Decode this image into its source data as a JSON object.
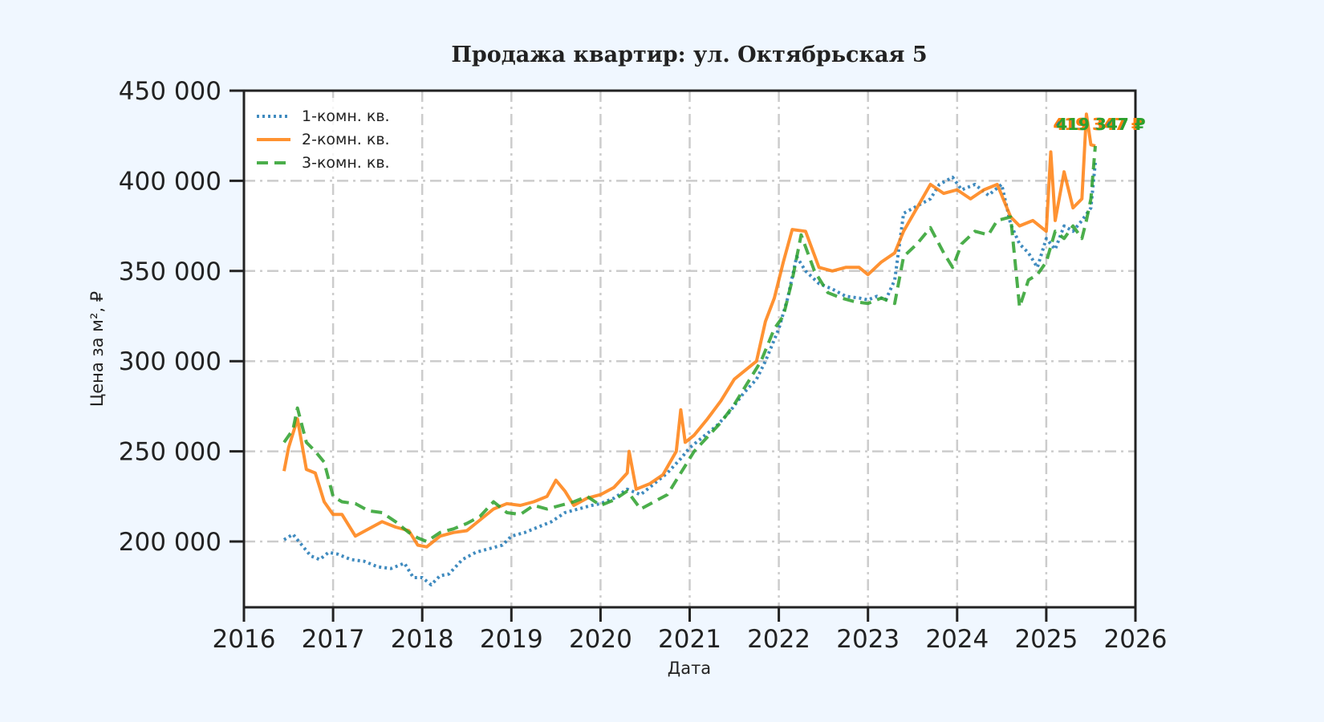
{
  "chart_data": {
    "type": "line",
    "title": "Продажа квартир: ул. Октябрьская 5",
    "xlabel": "Дата",
    "ylabel": "Цена за м², ₽",
    "xlim": [
      2016,
      2026
    ],
    "ylim": [
      163000,
      450000
    ],
    "x_ticks": [
      "2016",
      "2017",
      "2018",
      "2019",
      "2020",
      "2021",
      "2022",
      "2023",
      "2024",
      "2025",
      "2026"
    ],
    "y_ticks": [
      {
        "value": 200000,
        "label": "200 000"
      },
      {
        "value": 250000,
        "label": "250 000"
      },
      {
        "value": 300000,
        "label": "300 000"
      },
      {
        "value": 350000,
        "label": "350 000"
      },
      {
        "value": 400000,
        "label": "400 000"
      },
      {
        "value": 450000,
        "label": "450 000"
      }
    ],
    "grid": true,
    "legend_position": "upper left",
    "annotation": {
      "text": "419 347 ₽",
      "x": 2025.5,
      "y": 419347
    },
    "series": [
      {
        "name": "1-комн. кв.",
        "color": "#1f77b4",
        "style": "dotted",
        "x": [
          2016.45,
          2016.55,
          2016.65,
          2016.75,
          2016.85,
          2016.95,
          2017.05,
          2017.2,
          2017.35,
          2017.5,
          2017.65,
          2017.8,
          2017.9,
          2018.0,
          2018.1,
          2018.2,
          2018.3,
          2018.45,
          2018.6,
          2018.75,
          2018.9,
          2019.0,
          2019.15,
          2019.3,
          2019.45,
          2019.6,
          2019.75,
          2019.9,
          2020.0,
          2020.15,
          2020.3,
          2020.45,
          2020.6,
          2020.75,
          2020.9,
          2021.0,
          2021.15,
          2021.3,
          2021.45,
          2021.6,
          2021.75,
          2021.85,
          2022.0,
          2022.1,
          2022.2,
          2022.3,
          2022.45,
          2022.6,
          2022.75,
          2022.9,
          2023.0,
          2023.1,
          2023.2,
          2023.3,
          2023.4,
          2023.55,
          2023.7,
          2023.8,
          2023.95,
          2024.05,
          2024.2,
          2024.35,
          2024.5,
          2024.6,
          2024.7,
          2024.8,
          2024.9,
          2025.0,
          2025.1,
          2025.2,
          2025.3,
          2025.4,
          2025.5,
          2025.55
        ],
        "values": [
          201000,
          204000,
          198000,
          192000,
          190000,
          194000,
          193000,
          190000,
          189000,
          186000,
          185000,
          188000,
          180000,
          180000,
          176000,
          181000,
          182000,
          190000,
          194000,
          196000,
          198000,
          203000,
          205000,
          208000,
          211000,
          216000,
          218000,
          220000,
          221000,
          224000,
          229000,
          226000,
          232000,
          238000,
          246000,
          252000,
          258000,
          264000,
          272000,
          282000,
          290000,
          300000,
          318000,
          335000,
          358000,
          350000,
          343000,
          340000,
          336000,
          335000,
          334000,
          336000,
          334000,
          345000,
          382000,
          386000,
          390000,
          398000,
          402000,
          395000,
          398000,
          392000,
          398000,
          376000,
          365000,
          360000,
          352000,
          368000,
          362000,
          375000,
          372000,
          378000,
          385000,
          410000
        ]
      },
      {
        "name": "2-комн. кв.",
        "color": "#ff7f0e",
        "style": "solid",
        "x": [
          2016.45,
          2016.5,
          2016.6,
          2016.7,
          2016.8,
          2016.9,
          2017.0,
          2017.1,
          2017.25,
          2017.4,
          2017.55,
          2017.7,
          2017.85,
          2017.95,
          2018.05,
          2018.2,
          2018.35,
          2018.5,
          2018.65,
          2018.8,
          2018.95,
          2019.1,
          2019.25,
          2019.4,
          2019.5,
          2019.6,
          2019.7,
          2019.85,
          2020.0,
          2020.15,
          2020.3,
          2020.32,
          2020.4,
          2020.55,
          2020.7,
          2020.85,
          2020.9,
          2020.95,
          2021.05,
          2021.2,
          2021.35,
          2021.5,
          2021.65,
          2021.75,
          2021.85,
          2021.95,
          2022.05,
          2022.15,
          2022.3,
          2022.45,
          2022.6,
          2022.75,
          2022.9,
          2023.0,
          2023.15,
          2023.3,
          2023.4,
          2023.55,
          2023.7,
          2023.85,
          2024.0,
          2024.15,
          2024.3,
          2024.45,
          2024.6,
          2024.7,
          2024.85,
          2025.0,
          2025.05,
          2025.1,
          2025.2,
          2025.3,
          2025.4,
          2025.45,
          2025.5,
          2025.55
        ],
        "values": [
          239000,
          252000,
          268000,
          240000,
          238000,
          222000,
          215000,
          215000,
          203000,
          207000,
          211000,
          208000,
          206000,
          198000,
          197000,
          203000,
          205000,
          206000,
          212000,
          218000,
          221000,
          220000,
          222000,
          225000,
          234000,
          228000,
          220000,
          224000,
          226000,
          230000,
          238000,
          250000,
          229000,
          232000,
          237000,
          250000,
          273000,
          255000,
          259000,
          268000,
          278000,
          290000,
          296000,
          300000,
          322000,
          335000,
          355000,
          373000,
          372000,
          352000,
          350000,
          352000,
          352000,
          348000,
          355000,
          360000,
          372000,
          385000,
          398000,
          393000,
          395000,
          390000,
          395000,
          398000,
          380000,
          375000,
          378000,
          372000,
          416000,
          378000,
          405000,
          385000,
          390000,
          437000,
          420000,
          419347
        ]
      },
      {
        "name": "3-комн. кв.",
        "color": "#2ca02c",
        "style": "dashed",
        "x": [
          2016.45,
          2016.55,
          2016.6,
          2016.7,
          2016.8,
          2016.9,
          2017.0,
          2017.1,
          2017.25,
          2017.4,
          2017.55,
          2017.7,
          2017.85,
          2017.95,
          2018.05,
          2018.2,
          2018.35,
          2018.5,
          2018.65,
          2018.8,
          2018.95,
          2019.1,
          2019.25,
          2019.4,
          2019.55,
          2019.7,
          2019.85,
          2020.0,
          2020.15,
          2020.3,
          2020.45,
          2020.6,
          2020.75,
          2020.9,
          2021.05,
          2021.2,
          2021.35,
          2021.5,
          2021.65,
          2021.8,
          2021.95,
          2022.05,
          2022.15,
          2022.25,
          2022.4,
          2022.55,
          2022.7,
          2022.85,
          2023.0,
          2023.15,
          2023.3,
          2023.4,
          2023.55,
          2023.7,
          2023.85,
          2023.95,
          2024.05,
          2024.2,
          2024.35,
          2024.45,
          2024.6,
          2024.7,
          2024.8,
          2024.9,
          2025.0,
          2025.1,
          2025.2,
          2025.3,
          2025.4,
          2025.45,
          2025.5,
          2025.55
        ],
        "values": [
          255000,
          262000,
          274000,
          255000,
          250000,
          244000,
          225000,
          222000,
          221000,
          217000,
          216000,
          211000,
          205000,
          202000,
          200000,
          205000,
          207000,
          210000,
          214000,
          222000,
          216000,
          215000,
          220000,
          218000,
          220000,
          222000,
          225000,
          220000,
          223000,
          228000,
          218000,
          222000,
          226000,
          238000,
          250000,
          258000,
          266000,
          276000,
          288000,
          300000,
          318000,
          325000,
          345000,
          370000,
          350000,
          338000,
          335000,
          333000,
          332000,
          335000,
          332000,
          358000,
          365000,
          374000,
          360000,
          352000,
          365000,
          372000,
          370000,
          378000,
          380000,
          330000,
          345000,
          348000,
          355000,
          372000,
          368000,
          375000,
          368000,
          378000,
          390000,
          419347
        ]
      }
    ]
  }
}
